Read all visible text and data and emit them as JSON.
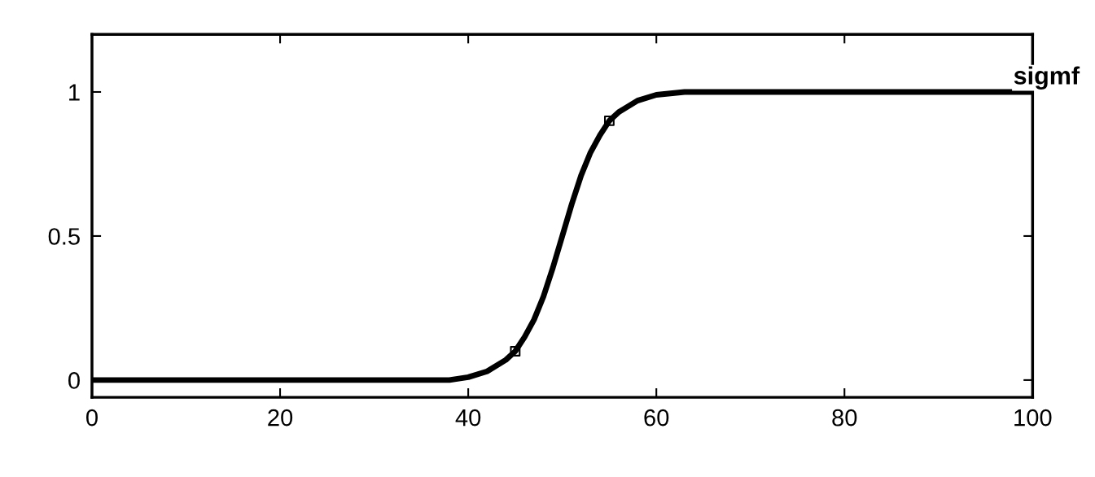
{
  "chart_data": {
    "type": "line",
    "annotations": [
      "sigmf"
    ],
    "series": [
      {
        "color": "#000000",
        "x": [
          0,
          20,
          38,
          40,
          42,
          44,
          45,
          46,
          47,
          48,
          49,
          50,
          51,
          52,
          53,
          54,
          55,
          56,
          58,
          60,
          63,
          80,
          100
        ],
        "values": [
          0,
          0,
          0,
          0.01,
          0.03,
          0.07,
          0.1,
          0.15,
          0.21,
          0.29,
          0.39,
          0.5,
          0.61,
          0.71,
          0.79,
          0.85,
          0.9,
          0.93,
          0.97,
          0.99,
          1,
          1,
          1
        ]
      },
      {
        "type": "scatter",
        "color": "#000000",
        "marker": "square",
        "x": [
          45,
          55
        ],
        "values": [
          0.1,
          0.9
        ]
      }
    ],
    "xlim": [
      0,
      100
    ],
    "xticks": [
      0,
      20,
      40,
      60,
      80,
      100
    ],
    "ylim": [
      -0.06,
      1.2
    ],
    "yticks": [
      0,
      0.5,
      1
    ],
    "grid": false
  }
}
